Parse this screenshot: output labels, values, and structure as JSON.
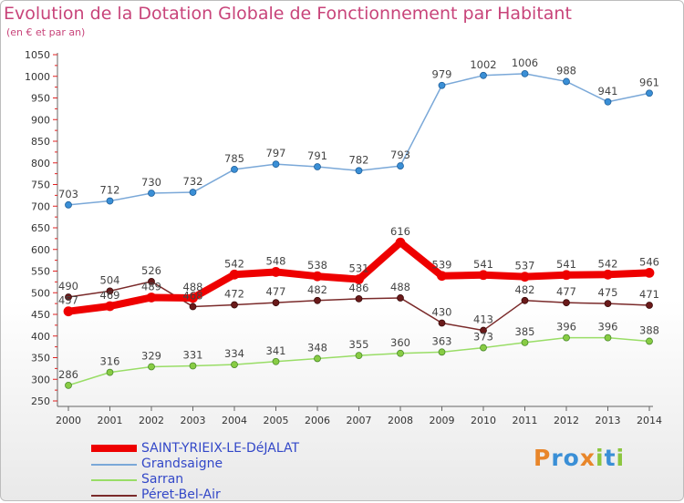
{
  "header": {
    "title": "Evolution de la Dotation Globale de Fonctionnement par Habitant",
    "subtitle": "(en € et par an)"
  },
  "brand": {
    "text": "Proxiti",
    "colors": [
      "#e8862a",
      "#3a8fd6",
      "#3a8fd6",
      "#e8862a",
      "#8cc63f",
      "#3a8fd6",
      "#8cc63f"
    ]
  },
  "chart_data": {
    "type": "line",
    "x": [
      2000,
      2001,
      2002,
      2003,
      2004,
      2005,
      2006,
      2007,
      2008,
      2009,
      2010,
      2011,
      2012,
      2013,
      2014
    ],
    "ylim": [
      250,
      1050
    ],
    "yticks": [
      250,
      300,
      350,
      400,
      450,
      500,
      550,
      600,
      650,
      700,
      750,
      800,
      850,
      900,
      950,
      1000,
      1050
    ],
    "grid": false,
    "legend_position": "bottom-left",
    "series": [
      {
        "name": "SAINT-YRIEIX-LE-DéJALAT",
        "color": "#ee0000",
        "values": [
          457,
          469,
          489,
          488,
          542,
          548,
          538,
          531,
          616,
          539,
          541,
          537,
          541,
          542,
          546
        ]
      },
      {
        "name": "Grandsaigne",
        "color": "#7aa8d8",
        "values": [
          703,
          712,
          730,
          732,
          785,
          797,
          791,
          782,
          793,
          979,
          1002,
          1006,
          988,
          941,
          961
        ]
      },
      {
        "name": "Sarran",
        "color": "#99dd66",
        "values": [
          286,
          316,
          329,
          331,
          334,
          341,
          348,
          355,
          360,
          363,
          373,
          385,
          396,
          396,
          388
        ]
      },
      {
        "name": "Péret-Bel-Air",
        "color": "#7a2a2a",
        "values": [
          490,
          504,
          526,
          468,
          472,
          477,
          482,
          486,
          488,
          430,
          413,
          482,
          477,
          475,
          471
        ]
      }
    ]
  }
}
